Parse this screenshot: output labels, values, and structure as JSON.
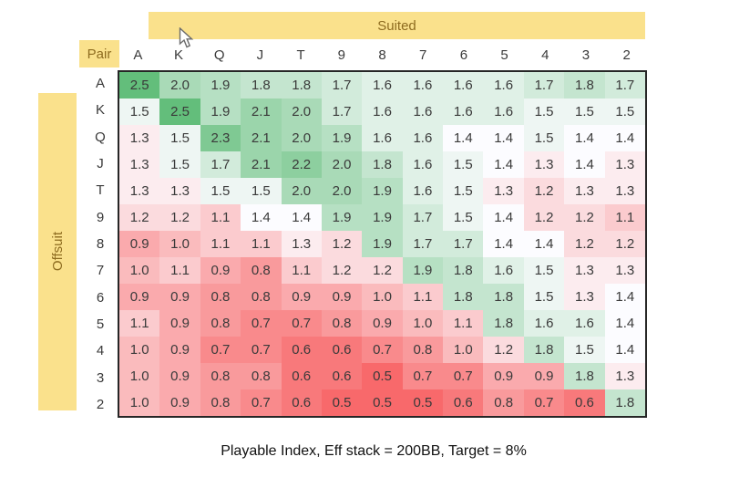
{
  "chart_data": {
    "type": "heatmap",
    "title": "Playable Index, Eff stack = 200BB, Target = 8%",
    "top_label": "Suited",
    "left_label": "Offsuit",
    "corner_label": "Pair",
    "columns": [
      "A",
      "K",
      "Q",
      "J",
      "T",
      "9",
      "8",
      "7",
      "6",
      "5",
      "4",
      "3",
      "2"
    ],
    "rows": [
      "A",
      "K",
      "Q",
      "J",
      "T",
      "9",
      "8",
      "7",
      "6",
      "5",
      "4",
      "3",
      "2"
    ],
    "values": [
      [
        2.5,
        2.0,
        1.9,
        1.8,
        1.8,
        1.7,
        1.6,
        1.6,
        1.6,
        1.6,
        1.7,
        1.8,
        1.7
      ],
      [
        1.5,
        2.5,
        1.9,
        2.1,
        2.0,
        1.7,
        1.6,
        1.6,
        1.6,
        1.6,
        1.5,
        1.5,
        1.5
      ],
      [
        1.3,
        1.5,
        2.3,
        2.1,
        2.0,
        1.9,
        1.6,
        1.6,
        1.4,
        1.4,
        1.5,
        1.4,
        1.4
      ],
      [
        1.3,
        1.5,
        1.7,
        2.1,
        2.2,
        2.0,
        1.8,
        1.6,
        1.5,
        1.4,
        1.3,
        1.4,
        1.3
      ],
      [
        1.3,
        1.3,
        1.5,
        1.5,
        2.0,
        2.0,
        1.9,
        1.6,
        1.5,
        1.3,
        1.2,
        1.3,
        1.3
      ],
      [
        1.2,
        1.2,
        1.1,
        1.4,
        1.4,
        1.9,
        1.9,
        1.7,
        1.5,
        1.4,
        1.2,
        1.2,
        1.1
      ],
      [
        0.9,
        1.0,
        1.1,
        1.1,
        1.3,
        1.2,
        1.9,
        1.7,
        1.7,
        1.4,
        1.4,
        1.2,
        1.2
      ],
      [
        1.0,
        1.1,
        0.9,
        0.8,
        1.1,
        1.2,
        1.2,
        1.9,
        1.8,
        1.6,
        1.5,
        1.3,
        1.3
      ],
      [
        0.9,
        0.9,
        0.8,
        0.8,
        0.9,
        0.9,
        1.0,
        1.1,
        1.8,
        1.8,
        1.5,
        1.3,
        1.4
      ],
      [
        1.1,
        0.9,
        0.8,
        0.7,
        0.7,
        0.8,
        0.9,
        1.0,
        1.1,
        1.8,
        1.6,
        1.6,
        1.4
      ],
      [
        1.0,
        0.9,
        0.7,
        0.7,
        0.6,
        0.6,
        0.7,
        0.8,
        1.0,
        1.2,
        1.8,
        1.5,
        1.4
      ],
      [
        1.0,
        0.9,
        0.8,
        0.8,
        0.6,
        0.6,
        0.5,
        0.7,
        0.7,
        0.9,
        0.9,
        1.8,
        1.3
      ],
      [
        1.0,
        0.9,
        0.8,
        0.7,
        0.6,
        0.5,
        0.5,
        0.5,
        0.6,
        0.8,
        0.7,
        0.6,
        1.8
      ]
    ],
    "value_format_decimals": 1,
    "color_scale": {
      "min": 0.5,
      "mid": 1.4,
      "max": 2.5,
      "min_color": "#F8696B",
      "mid_color": "#FCFCFF",
      "max_color": "#63BE7B"
    },
    "accent_yellow": "#FAE18C",
    "accent_gold_text": "#8E6C20",
    "caption": "Playable Index, Eff stack = 200BB, Target = 8%"
  }
}
